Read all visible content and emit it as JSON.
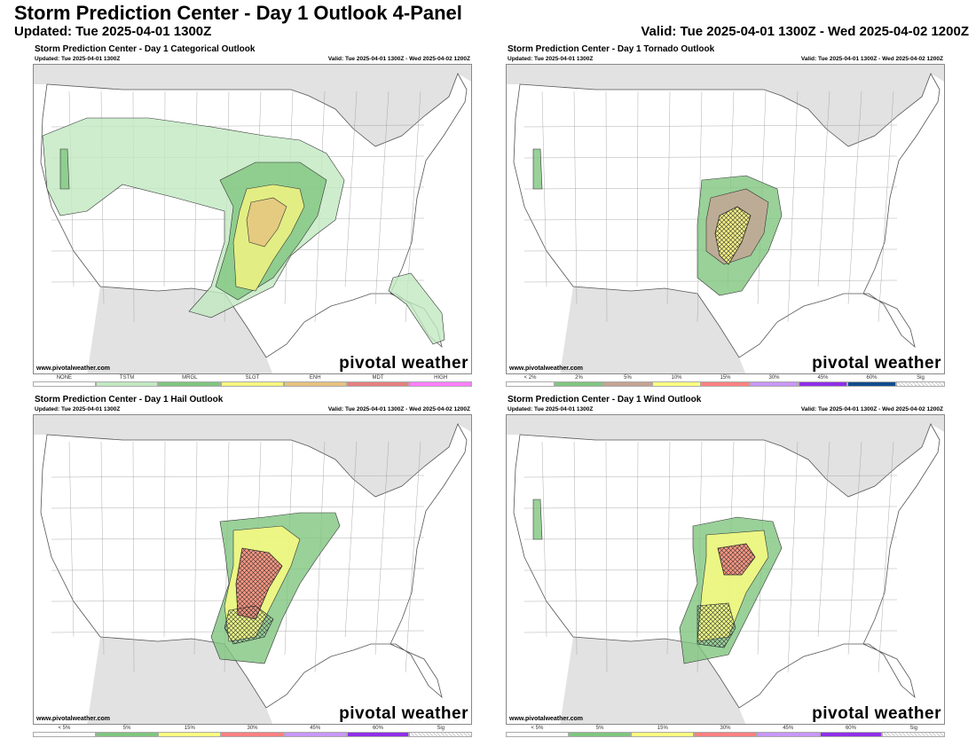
{
  "header": {
    "title": "Storm Prediction Center - Day 1 Outlook 4-Panel",
    "updated": "Updated: Tue 2025-04-01 1300Z",
    "valid": "Valid: Tue 2025-04-01 1300Z - Wed 2025-04-02 1200Z"
  },
  "panels": [
    {
      "id": "categorical",
      "title": "Storm Prediction Center - Day 1 Categorical Outlook",
      "updated": "Updated: Tue 2025-04-01 1300Z",
      "valid": "Valid: Tue 2025-04-01 1300Z - Wed 2025-04-02 1200Z",
      "url": "www.pivotalweather.com",
      "logo": "pivotal weather",
      "legend": [
        {
          "label": "NONE",
          "color": "#ffffff"
        },
        {
          "label": "TSTM",
          "color": "#c1e9c1"
        },
        {
          "label": "MRGL",
          "color": "#7fc57f"
        },
        {
          "label": "SLGT",
          "color": "#f6f67f"
        },
        {
          "label": "ENH",
          "color": "#e6c27f"
        },
        {
          "label": "MDT",
          "color": "#e67f7f"
        },
        {
          "label": "HIGH",
          "color": "#ff7fff"
        }
      ]
    },
    {
      "id": "tornado",
      "title": "Storm Prediction Center - Day 1 Tornado Outlook",
      "updated": "Updated: Tue 2025-04-01 1300Z",
      "valid": "Valid: Tue 2025-04-01 1300Z - Wed 2025-04-02 1200Z",
      "url": "www.pivotalweather.com",
      "logo": "pivotal weather",
      "legend": [
        {
          "label": "< 2%",
          "color": "#ffffff"
        },
        {
          "label": "2%",
          "color": "#80c580"
        },
        {
          "label": "5%",
          "color": "#c5a393"
        },
        {
          "label": "10%",
          "color": "#ffff80"
        },
        {
          "label": "15%",
          "color": "#ff8080"
        },
        {
          "label": "30%",
          "color": "#c896f7"
        },
        {
          "label": "45%",
          "color": "#8f2ee8"
        },
        {
          "label": "60%",
          "color": "#104c8c"
        },
        {
          "label": "Sig",
          "color": "hatch"
        }
      ]
    },
    {
      "id": "hail",
      "title": "Storm Prediction Center - Day 1 Hail Outlook",
      "updated": "Updated: Tue 2025-04-01 1300Z",
      "valid": "Valid: Tue 2025-04-01 1300Z - Wed 2025-04-02 1200Z",
      "url": "www.pivotalweather.com",
      "logo": "pivotal weather",
      "legend": [
        {
          "label": "< 5%",
          "color": "#ffffff"
        },
        {
          "label": "5%",
          "color": "#80c580"
        },
        {
          "label": "15%",
          "color": "#ffff80"
        },
        {
          "label": "30%",
          "color": "#ff8080"
        },
        {
          "label": "45%",
          "color": "#c896f7"
        },
        {
          "label": "60%",
          "color": "#8f2ee8"
        },
        {
          "label": "Sig",
          "color": "hatch"
        }
      ]
    },
    {
      "id": "wind",
      "title": "Storm Prediction Center - Day 1 Wind Outlook",
      "updated": "Updated: Tue 2025-04-01 1300Z",
      "valid": "Valid: Tue 2025-04-01 1300Z - Wed 2025-04-02 1200Z",
      "url": "www.pivotalweather.com",
      "logo": "pivotal weather",
      "legend": [
        {
          "label": "< 5%",
          "color": "#ffffff"
        },
        {
          "label": "5%",
          "color": "#80c580"
        },
        {
          "label": "15%",
          "color": "#ffff80"
        },
        {
          "label": "30%",
          "color": "#ff8080"
        },
        {
          "label": "45%",
          "color": "#c896f7"
        },
        {
          "label": "60%",
          "color": "#8f2ee8"
        },
        {
          "label": "Sig",
          "color": "hatch"
        }
      ]
    }
  ]
}
